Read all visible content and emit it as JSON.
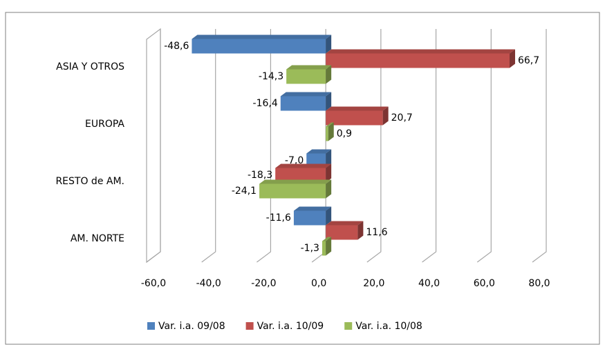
{
  "chart_data": {
    "type": "hbar3d",
    "categories": [
      "ASIA Y OTROS",
      "EUROPA",
      "RESTO de AM.",
      "AM. NORTE"
    ],
    "series": [
      {
        "name": "Var. i.a. 09/08",
        "color": "#4f81bd",
        "values": [
          -48.6,
          -16.4,
          -7.0,
          -11.6
        ],
        "value_labels": [
          "-48,6",
          "-16,4",
          "-7,0",
          "-11,6"
        ]
      },
      {
        "name": "Var. i.a. 10/09",
        "color": "#c0504d",
        "values": [
          66.7,
          20.7,
          -18.3,
          11.6
        ],
        "value_labels": [
          "66,7",
          "20,7",
          "-18,3",
          "11,6"
        ]
      },
      {
        "name": "Var. i.a. 10/08",
        "color": "#9bbb59",
        "values": [
          -14.3,
          0.9,
          -24.1,
          -1.3
        ],
        "value_labels": [
          "-14,3",
          "0,9",
          "-24,1",
          "-1,3"
        ]
      }
    ],
    "xlim": [
      -60,
      80
    ],
    "xticks": [
      {
        "value": -60,
        "label": "-60,0"
      },
      {
        "value": -40,
        "label": "-40,0"
      },
      {
        "value": -20,
        "label": "-20,0"
      },
      {
        "value": 0,
        "label": "0,0"
      },
      {
        "value": 20,
        "label": "20,0"
      },
      {
        "value": 40,
        "label": "40,0"
      },
      {
        "value": 60,
        "label": "60,0"
      },
      {
        "value": 80,
        "label": "80,0"
      }
    ],
    "grid": true,
    "legend": "bottom"
  }
}
